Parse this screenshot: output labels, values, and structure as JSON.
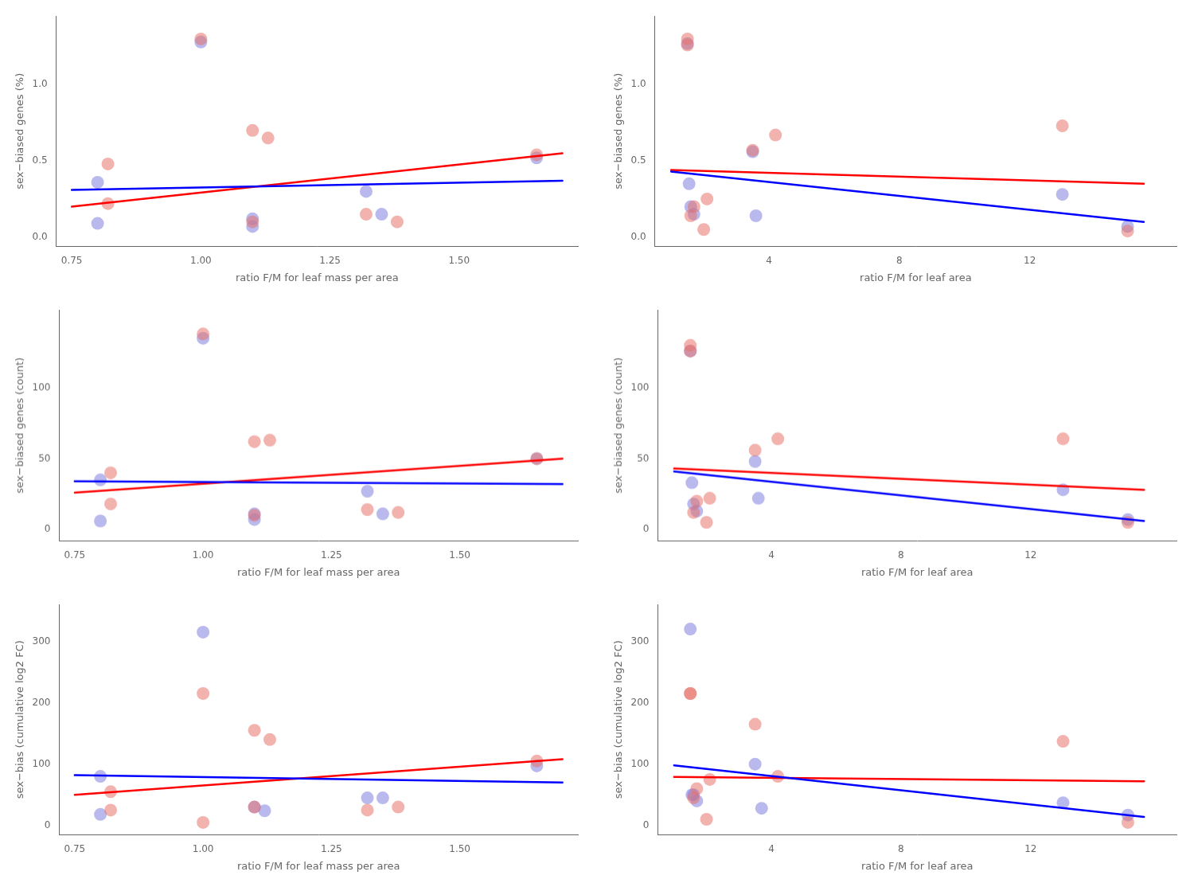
{
  "chart_data": [
    {
      "type": "scatter",
      "xlabel": "ratio F/M for leaf mass per area",
      "ylabel": "sex−biased genes (%)",
      "series": [
        {
          "type": "scatter",
          "color": "#8080E0",
          "x": [
            0.8,
            0.8,
            1.0,
            1.1,
            1.1,
            1.32,
            1.35,
            1.65
          ],
          "values": [
            0.36,
            0.09,
            1.28,
            0.12,
            0.07,
            0.3,
            0.15,
            0.52
          ]
        },
        {
          "type": "scatter",
          "color": "#E8736C",
          "x": [
            0.82,
            0.82,
            1.0,
            1.1,
            1.1,
            1.13,
            1.32,
            1.38,
            1.65
          ],
          "values": [
            0.48,
            0.22,
            1.3,
            0.1,
            0.7,
            0.65,
            0.15,
            0.1,
            0.54
          ]
        },
        {
          "type": "line",
          "color": "red",
          "x": [
            0.75,
            1.7
          ],
          "values": [
            0.2,
            0.55
          ]
        },
        {
          "type": "line",
          "color": "blue",
          "x": [
            0.75,
            1.7
          ],
          "values": [
            0.31,
            0.37
          ]
        }
      ],
      "xlim": [
        0.72,
        1.73
      ],
      "ylim": [
        -0.06,
        1.45
      ],
      "xticks": [
        0.75,
        {
          "value": 1.0,
          "label": "1.00"
        },
        1.25,
        {
          "value": 1.5,
          "label": "1.50"
        }
      ],
      "yticks": [
        {
          "value": 0,
          "label": "0.0"
        },
        0.5,
        {
          "value": 1.0,
          "label": "1.0"
        }
      ],
      "grid": false,
      "legend": false
    },
    {
      "type": "scatter",
      "xlabel": "ratio F/M for leaf area",
      "ylabel": "sex−biased genes (%)",
      "series": [
        {
          "type": "scatter",
          "color": "#8080E0",
          "x": [
            1.5,
            1.55,
            1.6,
            1.7,
            3.5,
            3.6,
            13.0,
            15.0
          ],
          "values": [
            1.27,
            0.35,
            0.2,
            0.15,
            0.56,
            0.14,
            0.28,
            0.07
          ]
        },
        {
          "type": "scatter",
          "color": "#E8736C",
          "x": [
            1.5,
            1.5,
            2.0,
            3.5,
            4.2,
            13.0,
            1.6,
            1.7,
            2.1,
            15.0
          ],
          "values": [
            1.3,
            1.26,
            0.05,
            0.57,
            0.67,
            0.73,
            0.14,
            0.2,
            0.25,
            0.04
          ]
        },
        {
          "type": "line",
          "color": "red",
          "x": [
            1.0,
            15.5
          ],
          "values": [
            0.44,
            0.35
          ]
        },
        {
          "type": "line",
          "color": "blue",
          "x": [
            1.0,
            15.5
          ],
          "values": [
            0.43,
            0.1
          ]
        }
      ],
      "xlim": [
        0.5,
        16.5
      ],
      "ylim": [
        -0.06,
        1.45
      ],
      "xticks": [
        4,
        8,
        12
      ],
      "yticks": [
        {
          "value": 0,
          "label": "0.0"
        },
        0.5,
        {
          "value": 1.0,
          "label": "1.0"
        }
      ],
      "grid": false,
      "legend": false
    },
    {
      "type": "scatter",
      "xlabel": "ratio F/M for leaf mass per area",
      "ylabel": "sex−biased genes (count)",
      "series": [
        {
          "type": "scatter",
          "color": "#8080E0",
          "x": [
            0.8,
            0.8,
            1.0,
            1.1,
            1.1,
            1.32,
            1.35,
            1.65
          ],
          "values": [
            35,
            6,
            135,
            11,
            7,
            27,
            11,
            50
          ]
        },
        {
          "type": "scatter",
          "color": "#E8736C",
          "x": [
            0.82,
            0.82,
            1.0,
            1.1,
            1.1,
            1.13,
            1.32,
            1.38,
            1.65
          ],
          "values": [
            40,
            18,
            138,
            10,
            62,
            63,
            14,
            12,
            50
          ]
        },
        {
          "type": "line",
          "color": "red",
          "x": [
            0.75,
            1.7
          ],
          "values": [
            26,
            50
          ]
        },
        {
          "type": "line",
          "color": "blue",
          "x": [
            0.75,
            1.7
          ],
          "values": [
            34,
            32
          ]
        }
      ],
      "xlim": [
        0.72,
        1.73
      ],
      "ylim": [
        -8,
        155
      ],
      "xticks": [
        0.75,
        {
          "value": 1.0,
          "label": "1.00"
        },
        1.25,
        {
          "value": 1.5,
          "label": "1.50"
        }
      ],
      "yticks": [
        0,
        50,
        100
      ],
      "grid": false,
      "legend": false
    },
    {
      "type": "scatter",
      "xlabel": "ratio F/M for leaf area",
      "ylabel": "sex−biased genes (count)",
      "series": [
        {
          "type": "scatter",
          "color": "#8080E0",
          "x": [
            1.5,
            1.55,
            1.6,
            1.7,
            3.5,
            3.6,
            13.0,
            15.0
          ],
          "values": [
            126,
            33,
            18,
            13,
            48,
            22,
            28,
            7
          ]
        },
        {
          "type": "scatter",
          "color": "#E8736C",
          "x": [
            1.5,
            1.5,
            2.0,
            3.5,
            4.2,
            13.0,
            1.6,
            1.7,
            2.1,
            15.0
          ],
          "values": [
            130,
            126,
            5,
            56,
            64,
            64,
            12,
            20,
            22,
            5
          ]
        },
        {
          "type": "line",
          "color": "red",
          "x": [
            1.0,
            15.5
          ],
          "values": [
            43,
            28
          ]
        },
        {
          "type": "line",
          "color": "blue",
          "x": [
            1.0,
            15.5
          ],
          "values": [
            41,
            6
          ]
        }
      ],
      "xlim": [
        0.5,
        16.5
      ],
      "ylim": [
        -8,
        155
      ],
      "xticks": [
        4,
        8,
        12
      ],
      "yticks": [
        0,
        50,
        100
      ],
      "grid": false,
      "legend": false
    },
    {
      "type": "scatter",
      "xlabel": "ratio F/M for leaf mass per area",
      "ylabel": "sex−bias (cumulative log2 FC)",
      "series": [
        {
          "type": "scatter",
          "color": "#8080E0",
          "x": [
            0.8,
            0.8,
            1.0,
            1.1,
            1.12,
            1.32,
            1.35,
            1.65
          ],
          "values": [
            80,
            18,
            315,
            30,
            24,
            45,
            45,
            97
          ]
        },
        {
          "type": "scatter",
          "color": "#E8736C",
          "x": [
            0.82,
            0.82,
            1.0,
            1.0,
            1.1,
            1.1,
            1.13,
            1.32,
            1.38,
            1.65
          ],
          "values": [
            55,
            25,
            215,
            5,
            30,
            155,
            140,
            25,
            30,
            105
          ]
        },
        {
          "type": "line",
          "color": "red",
          "x": [
            0.75,
            1.7
          ],
          "values": [
            50,
            108
          ]
        },
        {
          "type": "line",
          "color": "blue",
          "x": [
            0.75,
            1.7
          ],
          "values": [
            82,
            70
          ]
        }
      ],
      "xlim": [
        0.72,
        1.73
      ],
      "ylim": [
        -15,
        360
      ],
      "xticks": [
        0.75,
        {
          "value": 1.0,
          "label": "1.00"
        },
        1.25,
        {
          "value": 1.5,
          "label": "1.50"
        }
      ],
      "yticks": [
        0,
        100,
        200,
        300
      ],
      "grid": false,
      "legend": false
    },
    {
      "type": "scatter",
      "xlabel": "ratio F/M for leaf area",
      "ylabel": "sex−bias (cumulative log2 FC)",
      "series": [
        {
          "type": "scatter",
          "color": "#8080E0",
          "x": [
            1.5,
            1.55,
            1.6,
            1.7,
            3.5,
            3.7,
            13.0,
            15.0
          ],
          "values": [
            320,
            50,
            50,
            40,
            100,
            28,
            37,
            17
          ]
        },
        {
          "type": "scatter",
          "color": "#E8736C",
          "x": [
            1.5,
            1.5,
            2.0,
            3.5,
            4.2,
            13.0,
            1.6,
            1.7,
            2.1,
            15.0
          ],
          "values": [
            215,
            215,
            10,
            165,
            80,
            137,
            45,
            60,
            75,
            5
          ]
        },
        {
          "type": "line",
          "color": "red",
          "x": [
            1.0,
            15.5
          ],
          "values": [
            79,
            72
          ]
        },
        {
          "type": "line",
          "color": "blue",
          "x": [
            1.0,
            15.5
          ],
          "values": [
            98,
            14
          ]
        }
      ],
      "xlim": [
        0.5,
        16.5
      ],
      "ylim": [
        -15,
        360
      ],
      "xticks": [
        4,
        8,
        12
      ],
      "yticks": [
        0,
        100,
        200,
        300
      ],
      "grid": false,
      "legend": false
    }
  ]
}
